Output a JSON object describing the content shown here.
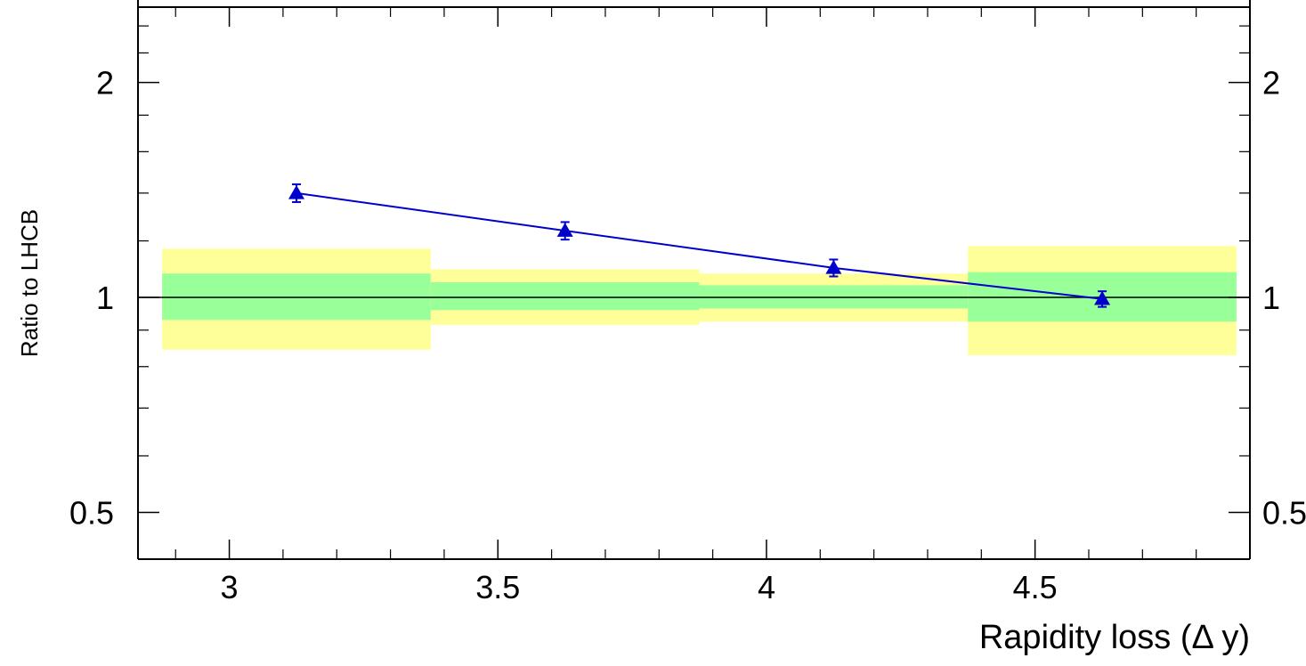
{
  "chart_data": {
    "type": "scatter",
    "title": "",
    "xlabel": "Rapidity loss (Δ y)",
    "ylabel": "Ratio to LHCB",
    "xlim": [
      2.83,
      4.9
    ],
    "ylim": [
      0.43,
      2.55
    ],
    "y_scale": "log",
    "x_ticks": [
      {
        "value": 3,
        "label": "3"
      },
      {
        "value": 3.5,
        "label": "3.5"
      },
      {
        "value": 4,
        "label": "4"
      },
      {
        "value": 4.5,
        "label": "4.5"
      }
    ],
    "y_ticks": [
      {
        "value": 0.5,
        "label": "0.5"
      },
      {
        "value": 1,
        "label": "1"
      },
      {
        "value": 2,
        "label": "2"
      }
    ],
    "reference_line": 1,
    "uncertainty_bands": [
      {
        "x_range": [
          2.875,
          3.375
        ],
        "inner": [
          0.93,
          1.08
        ],
        "outer": [
          0.845,
          1.17
        ]
      },
      {
        "x_range": [
          3.375,
          3.875
        ],
        "inner": [
          0.96,
          1.05
        ],
        "outer": [
          0.915,
          1.095
        ]
      },
      {
        "x_range": [
          3.875,
          4.375
        ],
        "inner": [
          0.965,
          1.04
        ],
        "outer": [
          0.925,
          1.08
        ]
      },
      {
        "x_range": [
          4.375,
          4.875
        ],
        "inner": [
          0.925,
          1.085
        ],
        "outer": [
          0.83,
          1.18
        ]
      }
    ],
    "series": [
      {
        "points": [
          {
            "x": 3.125,
            "y": 1.4,
            "err": 0.04
          },
          {
            "x": 3.625,
            "y": 1.24,
            "err": 0.035
          },
          {
            "x": 4.125,
            "y": 1.1,
            "err": 0.03
          },
          {
            "x": 4.625,
            "y": 0.995,
            "err": 0.025
          }
        ]
      }
    ],
    "colors": {
      "outer_band": "#ffff99",
      "inner_band": "#99ff99",
      "series": "#0000cc",
      "axes": "#000000"
    }
  }
}
